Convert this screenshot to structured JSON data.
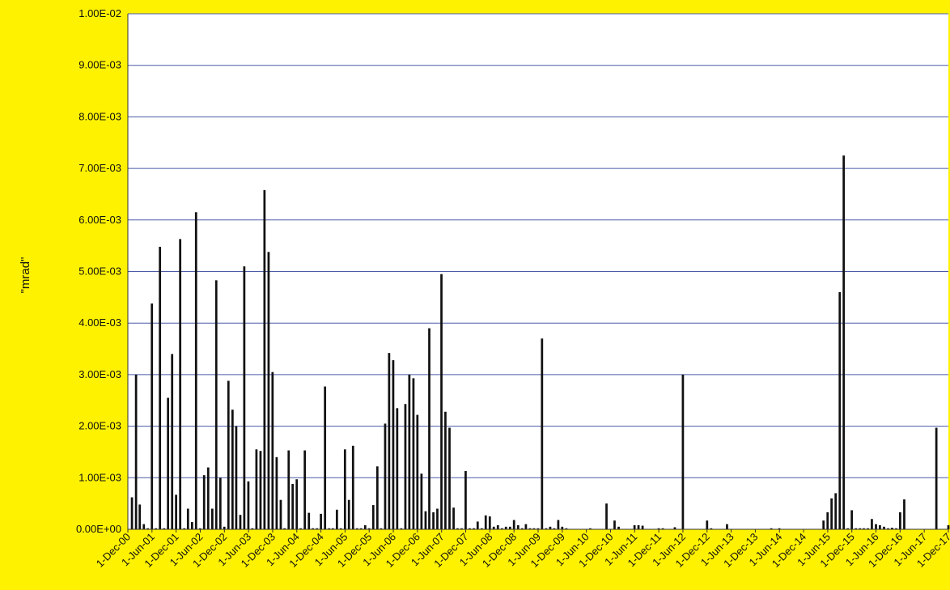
{
  "colors": {
    "background": "#fff200",
    "plot_area": "#ffffff",
    "gridline": "#4a5aa8",
    "bar": "#111111"
  },
  "chart_data": {
    "type": "bar",
    "title": "",
    "xlabel": "",
    "ylabel": "\"mrad\"",
    "ylim": [
      0,
      0.01
    ],
    "grid": "horizontal",
    "legend": "none",
    "y_tick_values": [
      0,
      0.001,
      0.002,
      0.003,
      0.004,
      0.005,
      0.006,
      0.007,
      0.008,
      0.009,
      0.01
    ],
    "y_tick_labels": [
      "0.00E+00",
      "1.00E-03",
      "2.00E-03",
      "3.00E-03",
      "4.00E-03",
      "5.00E-03",
      "6.00E-03",
      "7.00E-03",
      "8.00E-03",
      "9.00E-03",
      "1.00E-02"
    ],
    "x_tick_labels": [
      "1-Dec-00",
      "1-Jun-01",
      "1-Dec-01",
      "1-Jun-02",
      "1-Dec-02",
      "1-Jun-03",
      "1-Dec-03",
      "1-Jun-04",
      "1-Dec-04",
      "1-Jun-05",
      "1-Dec-05",
      "1-Jun-06",
      "1-Dec-06",
      "1-Jun-07",
      "1-Dec-07",
      "1-Jun-08",
      "1-Dec-08",
      "1-Jun-09",
      "1-Dec-09",
      "1-Jun-10",
      "1-Dec-10",
      "1-Jun-11",
      "1-Dec-11",
      "1-Jun-12",
      "1-Dec-12",
      "1-Jun-13",
      "1-Dec-13",
      "1-Jun-14",
      "1-Dec-14",
      "1-Jun-15",
      "1-Dec-15",
      "1-Jun-16",
      "1-Dec-16",
      "1-Jun-17",
      "1-Dec-17"
    ],
    "x_range": [
      "2000-12-01",
      "2017-12-01"
    ],
    "series": [
      {
        "values": [
          [
            "2001-01-01",
            0.00062
          ],
          [
            "2001-02-01",
            0.003
          ],
          [
            "2001-03-01",
            0.00048
          ],
          [
            "2001-04-01",
            0.0001
          ],
          [
            "2001-05-01",
            2e-05
          ],
          [
            "2001-06-01",
            0.00438
          ],
          [
            "2001-07-01",
            2e-05
          ],
          [
            "2001-08-01",
            0.00548
          ],
          [
            "2001-09-01",
            2e-05
          ],
          [
            "2001-10-01",
            0.00255
          ],
          [
            "2001-11-01",
            0.0034
          ],
          [
            "2001-12-01",
            0.00067
          ],
          [
            "2002-01-01",
            0.00563
          ],
          [
            "2002-02-01",
            2e-05
          ],
          [
            "2002-03-01",
            0.0004
          ],
          [
            "2002-04-01",
            0.00014
          ],
          [
            "2002-05-01",
            0.00615
          ],
          [
            "2002-06-01",
            2e-05
          ],
          [
            "2002-07-01",
            0.00105
          ],
          [
            "2002-08-01",
            0.0012
          ],
          [
            "2002-09-01",
            0.0004
          ],
          [
            "2002-10-01",
            0.00483
          ],
          [
            "2002-11-01",
            0.001
          ],
          [
            "2002-12-01",
            5e-05
          ],
          [
            "2003-01-01",
            0.00288
          ],
          [
            "2003-02-01",
            0.00232
          ],
          [
            "2003-03-01",
            0.002
          ],
          [
            "2003-04-01",
            0.00028
          ],
          [
            "2003-05-01",
            0.0051
          ],
          [
            "2003-06-01",
            0.00093
          ],
          [
            "2003-07-01",
            2e-05
          ],
          [
            "2003-08-01",
            0.00155
          ],
          [
            "2003-09-01",
            0.00152
          ],
          [
            "2003-10-01",
            0.00658
          ],
          [
            "2003-11-01",
            0.00538
          ],
          [
            "2003-12-01",
            0.00305
          ],
          [
            "2004-01-01",
            0.0014
          ],
          [
            "2004-02-01",
            0.00057
          ],
          [
            "2004-03-01",
            2e-05
          ],
          [
            "2004-04-01",
            0.00153
          ],
          [
            "2004-05-01",
            0.00088
          ],
          [
            "2004-06-01",
            0.00097
          ],
          [
            "2004-07-01",
            2e-05
          ],
          [
            "2004-08-01",
            0.00153
          ],
          [
            "2004-09-01",
            0.00032
          ],
          [
            "2004-10-01",
            2e-05
          ],
          [
            "2004-11-01",
            2e-05
          ],
          [
            "2004-12-01",
            0.0003
          ],
          [
            "2005-01-01",
            0.00277
          ],
          [
            "2005-02-01",
            2e-05
          ],
          [
            "2005-03-01",
            2e-05
          ],
          [
            "2005-04-01",
            0.00038
          ],
          [
            "2005-05-01",
            2e-05
          ],
          [
            "2005-06-01",
            0.00155
          ],
          [
            "2005-07-01",
            0.00057
          ],
          [
            "2005-08-01",
            0.00162
          ],
          [
            "2005-09-01",
            2e-05
          ],
          [
            "2005-10-01",
            2e-05
          ],
          [
            "2005-11-01",
            8e-05
          ],
          [
            "2005-12-01",
            2e-05
          ],
          [
            "2006-01-01",
            0.00047
          ],
          [
            "2006-02-01",
            0.00122
          ],
          [
            "2006-03-01",
            2e-05
          ],
          [
            "2006-04-01",
            0.00205
          ],
          [
            "2006-05-01",
            0.00342
          ],
          [
            "2006-06-01",
            0.00328
          ],
          [
            "2006-07-01",
            0.00235
          ],
          [
            "2006-08-01",
            2e-05
          ],
          [
            "2006-09-01",
            0.00243
          ],
          [
            "2006-10-01",
            0.003
          ],
          [
            "2006-11-01",
            0.00293
          ],
          [
            "2006-12-01",
            0.00222
          ],
          [
            "2007-01-01",
            0.00108
          ],
          [
            "2007-02-01",
            0.00035
          ],
          [
            "2007-03-01",
            0.0039
          ],
          [
            "2007-04-01",
            0.00033
          ],
          [
            "2007-05-01",
            0.0004
          ],
          [
            "2007-06-01",
            0.00495
          ],
          [
            "2007-07-01",
            0.00228
          ],
          [
            "2007-08-01",
            0.00197
          ],
          [
            "2007-09-01",
            0.00042
          ],
          [
            "2007-10-01",
            2e-05
          ],
          [
            "2007-11-01",
            2e-05
          ],
          [
            "2007-12-01",
            0.00113
          ],
          [
            "2008-01-01",
            2e-05
          ],
          [
            "2008-02-01",
            2e-05
          ],
          [
            "2008-03-01",
            0.00015
          ],
          [
            "2008-04-01",
            2e-05
          ],
          [
            "2008-05-01",
            0.00027
          ],
          [
            "2008-06-01",
            0.00025
          ],
          [
            "2008-07-01",
            5e-05
          ],
          [
            "2008-08-01",
            8e-05
          ],
          [
            "2008-09-01",
            2e-05
          ],
          [
            "2008-10-01",
            5e-05
          ],
          [
            "2008-11-01",
            5e-05
          ],
          [
            "2008-12-01",
            0.00018
          ],
          [
            "2009-01-01",
            8e-05
          ],
          [
            "2009-02-01",
            2e-05
          ],
          [
            "2009-03-01",
            0.0001
          ],
          [
            "2009-04-01",
            2e-05
          ],
          [
            "2009-05-01",
            2e-05
          ],
          [
            "2009-06-01",
            2e-05
          ],
          [
            "2009-07-01",
            0.0037
          ],
          [
            "2009-08-01",
            2e-05
          ],
          [
            "2009-09-01",
            5e-05
          ],
          [
            "2009-10-01",
            2e-05
          ],
          [
            "2009-11-01",
            0.00018
          ],
          [
            "2009-12-01",
            5e-05
          ],
          [
            "2010-01-01",
            2e-05
          ],
          [
            "2010-02-01",
            0.0
          ],
          [
            "2010-03-01",
            0.0
          ],
          [
            "2010-04-01",
            0.0
          ],
          [
            "2010-05-01",
            0.0
          ],
          [
            "2010-06-01",
            0.0
          ],
          [
            "2010-07-01",
            2e-05
          ],
          [
            "2010-08-01",
            0.0
          ],
          [
            "2010-09-01",
            0.0
          ],
          [
            "2010-10-01",
            0.0
          ],
          [
            "2010-11-01",
            0.0005
          ],
          [
            "2010-12-01",
            0.0
          ],
          [
            "2011-01-01",
            0.00017
          ],
          [
            "2011-02-01",
            5e-05
          ],
          [
            "2011-03-01",
            0.0
          ],
          [
            "2011-04-01",
            0.0
          ],
          [
            "2011-05-01",
            0.0
          ],
          [
            "2011-06-01",
            8e-05
          ],
          [
            "2011-07-01",
            8e-05
          ],
          [
            "2011-08-01",
            7e-05
          ],
          [
            "2011-09-01",
            0.0
          ],
          [
            "2011-10-01",
            0.0
          ],
          [
            "2011-11-01",
            0.0
          ],
          [
            "2011-12-01",
            2e-05
          ],
          [
            "2012-01-01",
            2e-05
          ],
          [
            "2012-02-01",
            0.0
          ],
          [
            "2012-03-01",
            0.0
          ],
          [
            "2012-04-01",
            4e-05
          ],
          [
            "2012-05-01",
            0.0
          ],
          [
            "2012-06-01",
            0.003
          ],
          [
            "2012-07-01",
            0.0
          ],
          [
            "2012-08-01",
            0.0
          ],
          [
            "2012-09-01",
            0.0
          ],
          [
            "2012-10-01",
            0.0
          ],
          [
            "2012-11-01",
            0.0
          ],
          [
            "2012-12-01",
            0.00017
          ],
          [
            "2013-01-01",
            2e-05
          ],
          [
            "2013-02-01",
            0.0
          ],
          [
            "2013-03-01",
            0.0
          ],
          [
            "2013-04-01",
            0.0
          ],
          [
            "2013-05-01",
            0.0001
          ],
          [
            "2013-06-01",
            0.0
          ],
          [
            "2013-07-01",
            0.0
          ],
          [
            "2013-08-01",
            0.0
          ],
          [
            "2013-09-01",
            0.0
          ],
          [
            "2013-10-01",
            0.0
          ],
          [
            "2013-11-01",
            0.0
          ],
          [
            "2013-12-01",
            0.0
          ],
          [
            "2014-01-01",
            0.0
          ],
          [
            "2014-02-01",
            0.0
          ],
          [
            "2014-03-01",
            0.0
          ],
          [
            "2014-04-01",
            2e-05
          ],
          [
            "2014-05-01",
            0.0
          ],
          [
            "2014-06-01",
            2e-05
          ],
          [
            "2014-07-01",
            0.0
          ],
          [
            "2014-08-01",
            0.0
          ],
          [
            "2014-09-01",
            0.0
          ],
          [
            "2014-10-01",
            0.0
          ],
          [
            "2014-11-01",
            0.0
          ],
          [
            "2014-12-01",
            0.0
          ],
          [
            "2015-01-01",
            0.0
          ],
          [
            "2015-02-01",
            0.0
          ],
          [
            "2015-03-01",
            0.0
          ],
          [
            "2015-04-01",
            0.0
          ],
          [
            "2015-05-01",
            0.00017
          ],
          [
            "2015-06-01",
            0.00033
          ],
          [
            "2015-07-01",
            0.0006
          ],
          [
            "2015-08-01",
            0.0007
          ],
          [
            "2015-09-01",
            0.0046
          ],
          [
            "2015-10-01",
            0.00725
          ],
          [
            "2015-11-01",
            2e-05
          ],
          [
            "2015-12-01",
            0.00037
          ],
          [
            "2016-01-01",
            2e-05
          ],
          [
            "2016-02-01",
            2e-05
          ],
          [
            "2016-03-01",
            2e-05
          ],
          [
            "2016-04-01",
            2e-05
          ],
          [
            "2016-05-01",
            0.0002
          ],
          [
            "2016-06-01",
            0.0001
          ],
          [
            "2016-07-01",
            8e-05
          ],
          [
            "2016-08-01",
            5e-05
          ],
          [
            "2016-09-01",
            2e-05
          ],
          [
            "2016-10-01",
            3e-05
          ],
          [
            "2016-11-01",
            2e-05
          ],
          [
            "2016-12-01",
            0.00033
          ],
          [
            "2017-01-01",
            0.00058
          ],
          [
            "2017-02-01",
            0.0
          ],
          [
            "2017-03-01",
            0.0
          ],
          [
            "2017-04-01",
            0.0
          ],
          [
            "2017-05-01",
            0.0
          ],
          [
            "2017-06-01",
            0.0
          ],
          [
            "2017-07-01",
            0.0
          ],
          [
            "2017-08-01",
            0.0
          ],
          [
            "2017-09-01",
            0.00197
          ],
          [
            "2017-10-01",
            0.0
          ],
          [
            "2017-11-01",
            0.0
          ],
          [
            "2017-12-01",
            8e-05
          ]
        ]
      }
    ]
  }
}
